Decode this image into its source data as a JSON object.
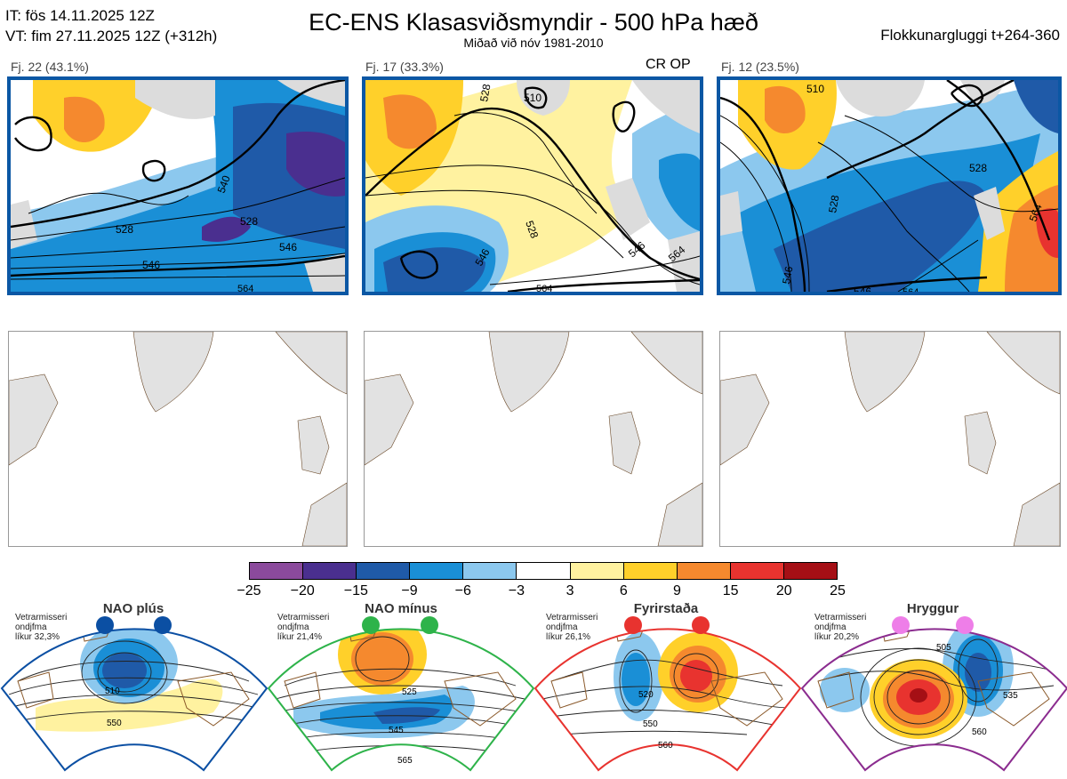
{
  "header": {
    "it_line": "IT: fös 14.11.2025 12Z",
    "vt_line": "VT: fim 27.11.2025 12Z  (+312h)",
    "title": "EC-ENS Klasasviðsmyndir - 500 hPa hæð",
    "subtitle": "Miðað við nóv 1981-2010",
    "window": "Flokkunargluggi t+264-360"
  },
  "clusters": [
    {
      "label": "Fj. 22 (43.1%)",
      "op": ""
    },
    {
      "label": "Fj. 17 (33.3%)",
      "op": "CR OP"
    },
    {
      "label": "Fj. 12 (23.5%)",
      "op": ""
    }
  ],
  "colorbar": {
    "ticks": [
      "−25",
      "−20",
      "−15",
      "−9",
      "−6",
      "−3",
      "3",
      "6",
      "9",
      "15",
      "20",
      "25"
    ],
    "colors": [
      "#8b4a9c",
      "#4a2f8f",
      "#1f5aa8",
      "#1a8fd6",
      "#8cc8ee",
      "#ffffff",
      "#fff2a0",
      "#ffd02a",
      "#f5892e",
      "#e8332f",
      "#a50f15"
    ]
  },
  "regimes": [
    {
      "name": "NAO plús",
      "note": [
        "Vetrarmisseri",
        "ondjfma",
        "líkur 32,3%"
      ],
      "dot_color": "#0b4fa3",
      "border_color": "#0b4fa3",
      "contours": [
        "510",
        "550"
      ]
    },
    {
      "name": "NAO mínus",
      "note": [
        "Vetrarmisseri",
        "ondjfma",
        "líkur 21,4%"
      ],
      "dot_color": "#2eb34a",
      "border_color": "#2eb34a",
      "contours": [
        "525",
        "545",
        "565"
      ]
    },
    {
      "name": "Fyrirstaða",
      "note": [
        "Vetrarmisseri",
        "ondjfma",
        "líkur 26,1%"
      ],
      "dot_color": "#e8332f",
      "border_color": "#e8332f",
      "contours": [
        "520",
        "550",
        "560"
      ]
    },
    {
      "name": "Hryggur",
      "note": [
        "Vetrarmisseri",
        "ondjfma",
        "líkur 20,2%"
      ],
      "dot_color": "#ee7ee8",
      "border_color": "#8b2c8f",
      "contours": [
        "505",
        "535",
        "560"
      ]
    }
  ],
  "map_contour_labels": {
    "c1": [
      "528",
      "540",
      "546",
      "528",
      "546",
      "564"
    ],
    "c2": [
      "510",
      "528",
      "528",
      "546",
      "546",
      "564",
      "564"
    ],
    "c3": [
      "510",
      "528",
      "528",
      "546",
      "546",
      "564",
      "564"
    ]
  },
  "icons": {
    "land": "land-mass",
    "dot": "regime-dot"
  }
}
